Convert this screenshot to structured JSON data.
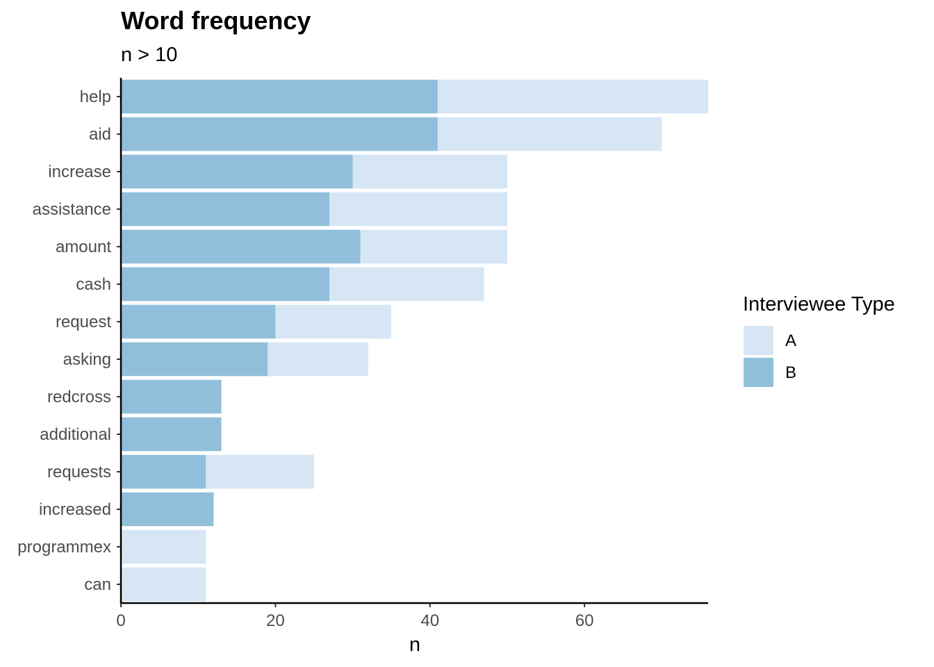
{
  "chart_data": {
    "type": "bar",
    "orientation": "horizontal",
    "stacked": true,
    "title": "Word frequency",
    "subtitle": "n > 10",
    "xlabel": "n",
    "ylabel": "",
    "xlim": [
      0,
      76
    ],
    "x_ticks": [
      0,
      20,
      40,
      60
    ],
    "grid": false,
    "categories": [
      "help",
      "aid",
      "increase",
      "assistance",
      "amount",
      "cash",
      "request",
      "asking",
      "redcross",
      "additional",
      "requests",
      "increased",
      "programmex",
      "can"
    ],
    "series": [
      {
        "name": "B",
        "color": "#91bfdb",
        "values": [
          41,
          41,
          30,
          27,
          31,
          27,
          20,
          19,
          13,
          13,
          11,
          12,
          0,
          0
        ]
      },
      {
        "name": "A",
        "color": "#d6e6f4",
        "values": [
          35,
          29,
          20,
          23,
          19,
          20,
          15,
          13,
          0,
          0,
          14,
          0,
          11,
          11
        ]
      }
    ],
    "legend": {
      "title": "Interviewee Type",
      "position": "right",
      "entries": [
        {
          "label": "A",
          "color": "#d6e6f4"
        },
        {
          "label": "B",
          "color": "#91bfdb"
        }
      ]
    }
  }
}
